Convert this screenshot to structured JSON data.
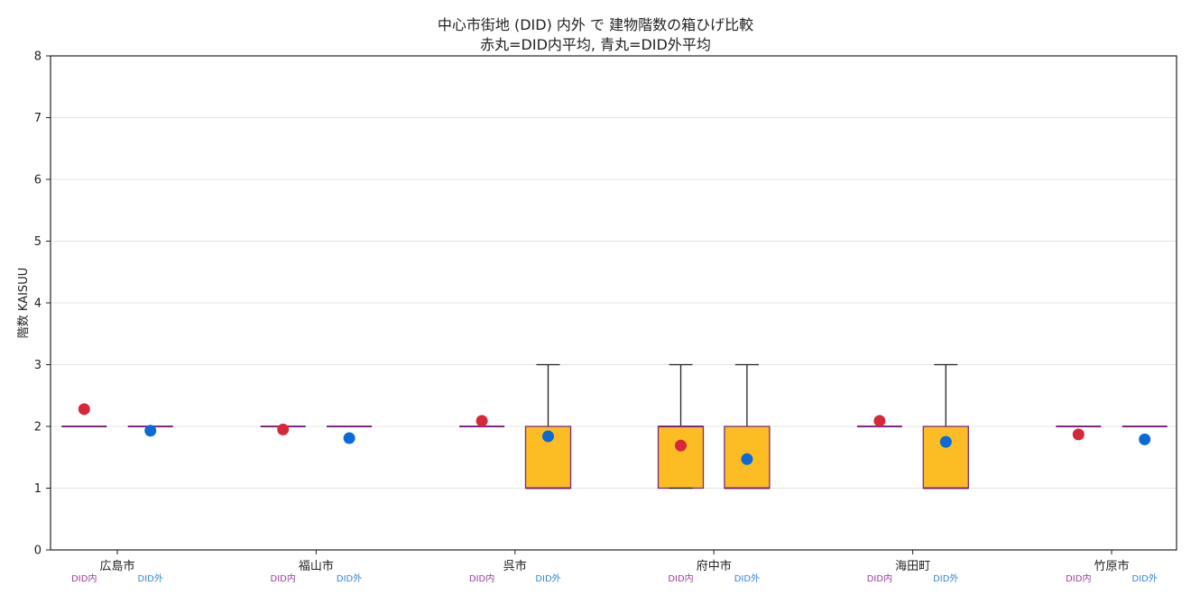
{
  "chart_data": {
    "type": "box",
    "title": "中心市街地 (DID) 内外 で 建物階数の箱ひげ比較",
    "subtitle": "赤丸=DID内平均, 青丸=DID外平均",
    "xlabel": "",
    "ylabel": "階数 KAISUU",
    "ylim": [
      0,
      8
    ],
    "yticks": [
      0,
      1,
      2,
      3,
      4,
      5,
      6,
      7,
      8
    ],
    "grid": true,
    "sub_labels": [
      "DID内",
      "DID外"
    ],
    "colors": {
      "box_fill": "#fbbc24",
      "box_edge": "#7b2a7b",
      "median": "#7b2a7b",
      "whisker": "#222222",
      "mean_in": "#d62839",
      "mean_out": "#0b6bd6",
      "label_in": "#9b3b9b",
      "label_out": "#2f86d6"
    },
    "categories": [
      "広島市",
      "福山市",
      "呉市",
      "府中市",
      "海田町",
      "竹原市"
    ],
    "series": [
      {
        "name": "DID内",
        "boxes": [
          {
            "q1": 2,
            "median": 2,
            "q3": 2,
            "whislo": 2,
            "whishi": 2,
            "mean": 2.28
          },
          {
            "q1": 2,
            "median": 2,
            "q3": 2,
            "whislo": 2,
            "whishi": 2,
            "mean": 1.95
          },
          {
            "q1": 2,
            "median": 2,
            "q3": 2,
            "whislo": 2,
            "whishi": 2,
            "mean": 2.09
          },
          {
            "q1": 1,
            "median": 2,
            "q3": 2,
            "whislo": 1,
            "whishi": 3,
            "mean": 1.69
          },
          {
            "q1": 2,
            "median": 2,
            "q3": 2,
            "whislo": 2,
            "whishi": 2,
            "mean": 2.09
          },
          {
            "q1": 2,
            "median": 2,
            "q3": 2,
            "whislo": 2,
            "whishi": 2,
            "mean": 1.87
          }
        ]
      },
      {
        "name": "DID外",
        "boxes": [
          {
            "q1": 2,
            "median": 2,
            "q3": 2,
            "whislo": 2,
            "whishi": 2,
            "mean": 1.93
          },
          {
            "q1": 2,
            "median": 2,
            "q3": 2,
            "whislo": 2,
            "whishi": 2,
            "mean": 1.81
          },
          {
            "q1": 1,
            "median": 1,
            "q3": 2,
            "whislo": 1,
            "whishi": 3,
            "mean": 1.84
          },
          {
            "q1": 1,
            "median": 1,
            "q3": 2,
            "whislo": 1,
            "whishi": 3,
            "mean": 1.47
          },
          {
            "q1": 1,
            "median": 1,
            "q3": 2,
            "whislo": 1,
            "whishi": 3,
            "mean": 1.75
          },
          {
            "q1": 2,
            "median": 2,
            "q3": 2,
            "whislo": 2,
            "whishi": 2,
            "mean": 1.79
          }
        ]
      }
    ]
  }
}
